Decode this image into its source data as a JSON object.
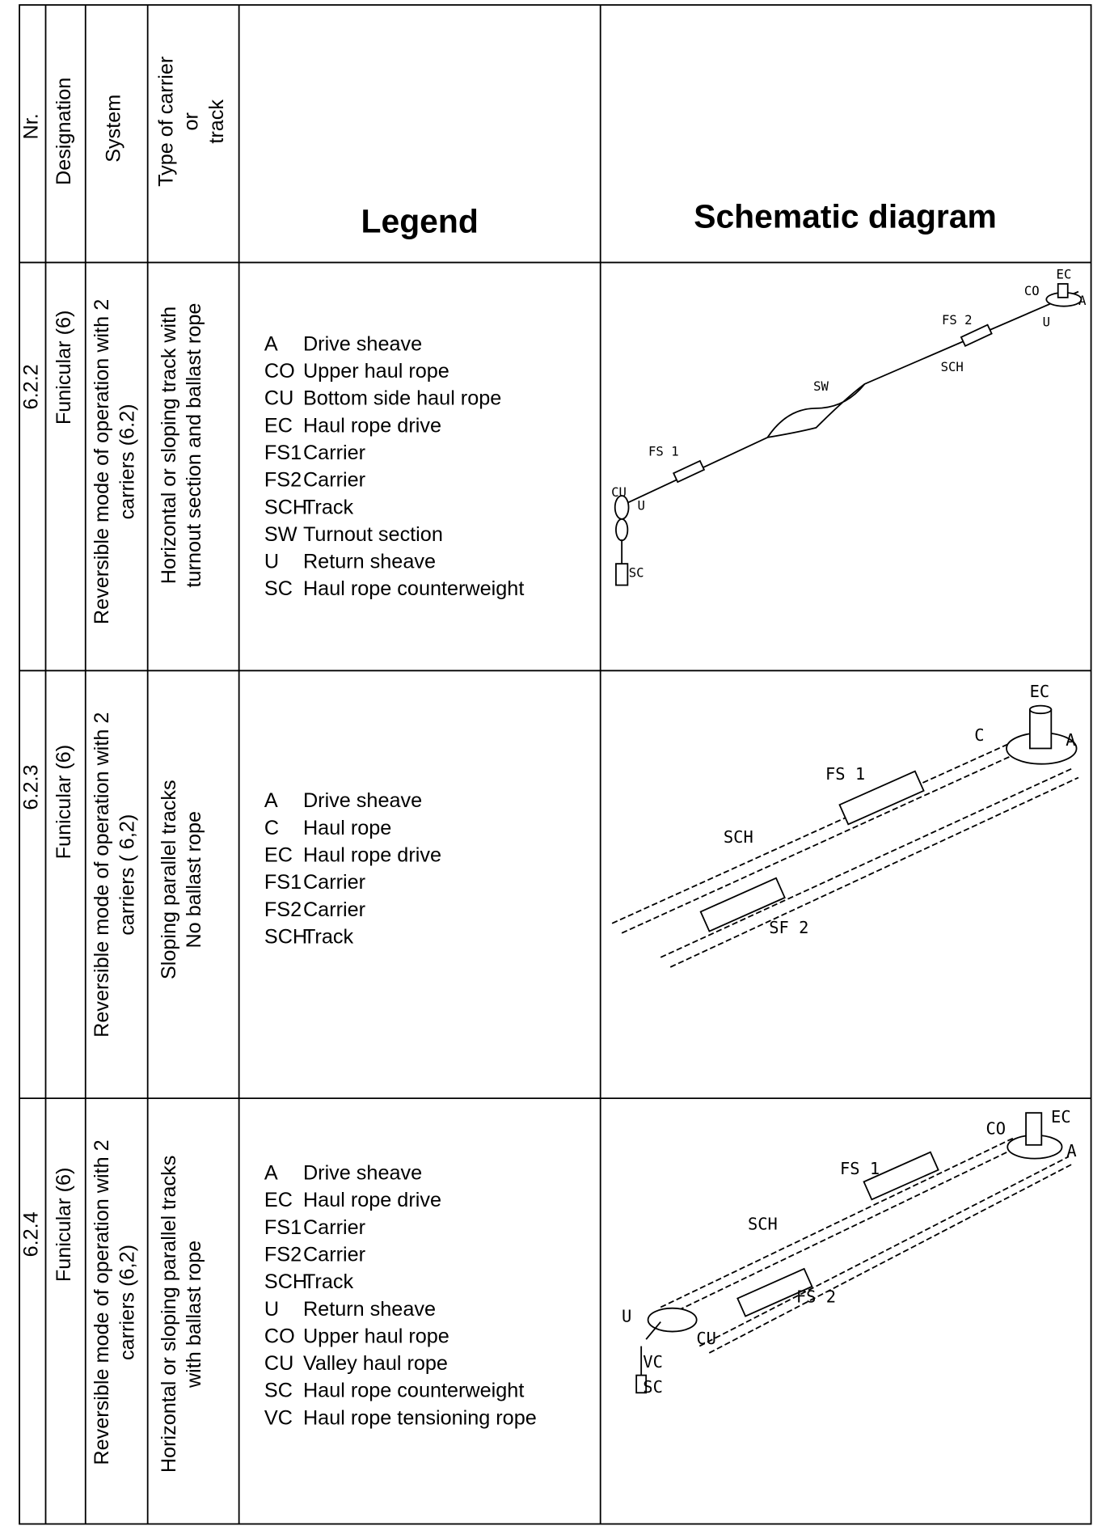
{
  "header": {
    "nr": "Nr.",
    "designation": "Designation",
    "system": "System",
    "track": [
      "Type of carrier",
      "or",
      "track"
    ],
    "legend": "Legend",
    "schematic": "Schematic diagram"
  },
  "rows": [
    {
      "nr": "6.2.2",
      "designation": "Funicular (6)",
      "system": [
        "Reversible mode of operation with 2",
        "carriers (6.2)"
      ],
      "track": [
        "Horizontal or sloping track with",
        "turnout section and ballast rope"
      ],
      "legend": [
        [
          "A",
          "Drive sheave"
        ],
        [
          "CO",
          "Upper haul rope"
        ],
        [
          "CU",
          "Bottom side haul rope"
        ],
        [
          "EC",
          "Haul rope drive"
        ],
        [
          "FS1",
          "Carrier"
        ],
        [
          "FS2",
          "Carrier"
        ],
        [
          "SCH",
          "Track"
        ],
        [
          "SW",
          "Turnout section"
        ],
        [
          "U",
          "Return sheave"
        ],
        [
          "SC",
          "Haul rope counterweight"
        ]
      ],
      "diagram_labels": [
        "EC",
        "CO",
        "A",
        "U",
        "FS 2",
        "SCH",
        "SW",
        "FS 1",
        "CU",
        "U",
        "SC"
      ]
    },
    {
      "nr": "6.2.3",
      "designation": "Funicular (6)",
      "system": [
        "Reversible mode of operation with 2",
        "carriers ( 6,2)"
      ],
      "track": [
        "Sloping parallel tracks",
        "No ballast rope"
      ],
      "legend": [
        [
          "A",
          "Drive sheave"
        ],
        [
          "C",
          "Haul rope"
        ],
        [
          "EC",
          "Haul rope drive"
        ],
        [
          "FS1",
          "Carrier"
        ],
        [
          "FS2",
          "Carrier"
        ],
        [
          "SCH",
          "Track"
        ]
      ],
      "diagram_labels": [
        "EC",
        "C",
        "A",
        "FS 1",
        "SCH",
        "SF 2"
      ]
    },
    {
      "nr": "6.2.4",
      "designation": "Funicular (6)",
      "system": [
        "Reversible mode of operation with 2",
        "carriers (6,2)"
      ],
      "track": [
        "Horizontal or sloping parallel tracks",
        "with ballast rope"
      ],
      "legend": [
        [
          "A",
          "Drive sheave"
        ],
        [
          "EC",
          "Haul rope drive"
        ],
        [
          "FS1",
          "Carrier"
        ],
        [
          "FS2",
          "Carrier"
        ],
        [
          "SCH",
          "Track"
        ],
        [
          "U",
          "Return sheave"
        ],
        [
          "CO",
          "Upper haul rope"
        ],
        [
          "CU",
          "Valley haul rope"
        ],
        [
          "SC",
          "Haul rope counterweight"
        ],
        [
          "VC",
          "Haul rope tensioning rope"
        ]
      ],
      "diagram_labels": [
        "CO",
        "EC",
        "A",
        "FS 1",
        "SCH",
        "FS 2",
        "U",
        "CU",
        "VC",
        "SC"
      ]
    }
  ]
}
